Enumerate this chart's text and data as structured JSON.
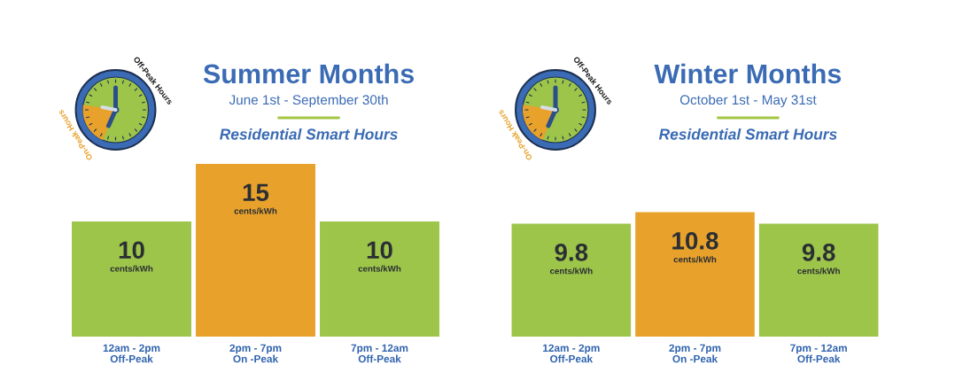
{
  "chart_data": [
    {
      "type": "bar",
      "title": "Summer Months",
      "subtitle": "June 1st - September 30th",
      "categories": [
        "12am - 2pm\nOff-Peak",
        "2pm - 7pm\nOn -Peak",
        "7pm - 12am\nOff-Peak"
      ],
      "values": [
        10,
        15,
        10
      ],
      "colors": [
        "#9dc54a",
        "#e8a22c",
        "#9dc54a"
      ],
      "data_labels": true,
      "tick_labels": "x",
      "annotations": [
        "Residential Smart Hours",
        "Off-Peak Hours",
        "On-Peak Hours",
        "cents/kWh",
        "cents/kWh",
        "cents/kWh"
      ]
    },
    {
      "type": "bar",
      "title": "Winter Months",
      "subtitle": "October 1st - May 31st",
      "categories": [
        "12am - 2pm\nOff-Peak",
        "2pm - 7pm\nOn -Peak",
        "7pm - 12am\nOff-Peak"
      ],
      "values": [
        9.8,
        10.8,
        9.8
      ],
      "colors": [
        "#9dc54a",
        "#e8a22c",
        "#9dc54a"
      ],
      "data_labels": true,
      "tick_labels": "x",
      "annotations": [
        "Residential Smart Hours",
        "Off-Peak Hours",
        "On-Peak Hours",
        "cents/kWh",
        "cents/kWh",
        "cents/kWh"
      ]
    }
  ]
}
